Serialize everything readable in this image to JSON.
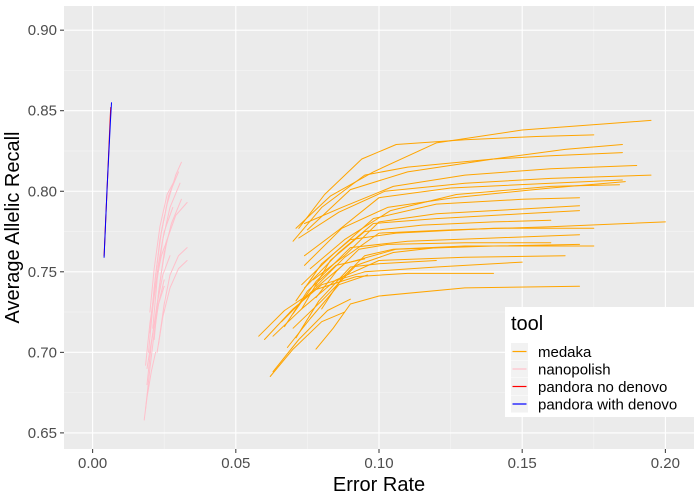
{
  "chart_data": {
    "type": "line",
    "title": "",
    "xlabel": "Error Rate",
    "ylabel": "Average Allelic Recall",
    "xlim": [
      -0.01,
      0.21
    ],
    "ylim": [
      0.64,
      0.915
    ],
    "x_ticks": [
      0.0,
      0.05,
      0.1,
      0.15,
      0.2
    ],
    "x_tick_labels": [
      "0.00",
      "0.05",
      "0.10",
      "0.15",
      "0.20"
    ],
    "y_ticks": [
      0.65,
      0.7,
      0.75,
      0.8,
      0.85,
      0.9
    ],
    "y_tick_labels": [
      "0.65",
      "0.70",
      "0.75",
      "0.80",
      "0.85",
      "0.90"
    ],
    "grid": true,
    "legend": {
      "title": "tool",
      "position": "bottom-right-inside",
      "entries": [
        {
          "label": "medaka",
          "color": "#FFA500"
        },
        {
          "label": "nanopolish",
          "color": "#FFC0CB"
        },
        {
          "label": "pandora no denovo",
          "color": "#FF0000"
        },
        {
          "label": "pandora with denovo",
          "color": "#0000FF"
        }
      ]
    },
    "colors": {
      "medaka": "#FFA500",
      "nanopolish": "#FFC0CB",
      "pandora no denovo": "#FF0000",
      "pandora with denovo": "#0000FF",
      "panel_background": "#EBEBEB",
      "grid_major": "#FFFFFF"
    },
    "series": [
      {
        "tool": "medaka",
        "x": [
          0.07,
          0.08,
          0.095,
          0.11,
          0.14,
          0.16,
          0.185
        ],
        "y": [
          0.769,
          0.79,
          0.81,
          0.815,
          0.82,
          0.822,
          0.824
        ]
      },
      {
        "tool": "medaka",
        "x": [
          0.071,
          0.083,
          0.098,
          0.12,
          0.15,
          0.18,
          0.195
        ],
        "y": [
          0.777,
          0.797,
          0.812,
          0.83,
          0.838,
          0.842,
          0.844
        ]
      },
      {
        "tool": "medaka",
        "x": [
          0.072,
          0.081,
          0.094,
          0.106,
          0.13,
          0.155,
          0.175
        ],
        "y": [
          0.777,
          0.798,
          0.82,
          0.829,
          0.832,
          0.834,
          0.835
        ]
      },
      {
        "tool": "medaka",
        "x": [
          0.075,
          0.09,
          0.11,
          0.14,
          0.165,
          0.185
        ],
        "y": [
          0.776,
          0.801,
          0.812,
          0.82,
          0.826,
          0.829
        ]
      },
      {
        "tool": "medaka",
        "x": [
          0.074,
          0.087,
          0.105,
          0.13,
          0.16,
          0.19
        ],
        "y": [
          0.78,
          0.79,
          0.803,
          0.81,
          0.814,
          0.816
        ]
      },
      {
        "tool": "medaka",
        "x": [
          0.072,
          0.086,
          0.102,
          0.13,
          0.16,
          0.195
        ],
        "y": [
          0.771,
          0.787,
          0.8,
          0.805,
          0.808,
          0.81
        ]
      },
      {
        "tool": "medaka",
        "x": [
          0.074,
          0.086,
          0.1,
          0.125,
          0.16,
          0.185
        ],
        "y": [
          0.76,
          0.776,
          0.796,
          0.802,
          0.805,
          0.807
        ]
      },
      {
        "tool": "medaka",
        "x": [
          0.074,
          0.087,
          0.103,
          0.126,
          0.16,
          0.186
        ],
        "y": [
          0.754,
          0.777,
          0.79,
          0.796,
          0.802,
          0.806
        ]
      },
      {
        "tool": "medaka",
        "x": [
          0.076,
          0.088,
          0.104,
          0.127,
          0.16,
          0.184
        ],
        "y": [
          0.752,
          0.77,
          0.788,
          0.798,
          0.803,
          0.804
        ]
      },
      {
        "tool": "medaka",
        "x": [
          0.073,
          0.084,
          0.098,
          0.12,
          0.15,
          0.17
        ],
        "y": [
          0.742,
          0.761,
          0.783,
          0.792,
          0.795,
          0.796
        ]
      },
      {
        "tool": "medaka",
        "x": [
          0.077,
          0.088,
          0.1,
          0.12,
          0.15,
          0.17
        ],
        "y": [
          0.745,
          0.76,
          0.781,
          0.786,
          0.789,
          0.791
        ]
      },
      {
        "tool": "medaka",
        "x": [
          0.078,
          0.088,
          0.1,
          0.125,
          0.16,
          0.2
        ],
        "y": [
          0.741,
          0.759,
          0.774,
          0.776,
          0.778,
          0.781
        ]
      },
      {
        "tool": "medaka",
        "x": [
          0.074,
          0.086,
          0.098,
          0.12,
          0.15,
          0.17
        ],
        "y": [
          0.74,
          0.762,
          0.78,
          0.783,
          0.786,
          0.788
        ]
      },
      {
        "tool": "medaka",
        "x": [
          0.073,
          0.083,
          0.095,
          0.115,
          0.14,
          0.16
        ],
        "y": [
          0.727,
          0.757,
          0.775,
          0.779,
          0.781,
          0.782
        ]
      },
      {
        "tool": "medaka",
        "x": [
          0.071,
          0.08,
          0.09,
          0.106,
          0.14,
          0.175
        ],
        "y": [
          0.732,
          0.755,
          0.77,
          0.774,
          0.777,
          0.777
        ]
      },
      {
        "tool": "medaka",
        "x": [
          0.07,
          0.078,
          0.09,
          0.11,
          0.14,
          0.17
        ],
        "y": [
          0.724,
          0.744,
          0.765,
          0.769,
          0.771,
          0.773
        ]
      },
      {
        "tool": "medaka",
        "x": [
          0.066,
          0.076,
          0.088,
          0.106,
          0.14,
          0.17
        ],
        "y": [
          0.719,
          0.737,
          0.755,
          0.764,
          0.766,
          0.767
        ]
      },
      {
        "tool": "medaka",
        "x": [
          0.063,
          0.073,
          0.085,
          0.1,
          0.13,
          0.165
        ],
        "y": [
          0.71,
          0.727,
          0.745,
          0.757,
          0.759,
          0.76
        ]
      },
      {
        "tool": "medaka",
        "x": [
          0.06,
          0.07,
          0.08,
          0.095,
          0.12,
          0.15
        ],
        "y": [
          0.708,
          0.727,
          0.742,
          0.75,
          0.753,
          0.756
        ]
      },
      {
        "tool": "medaka",
        "x": [
          0.058,
          0.067,
          0.078,
          0.092,
          0.11,
          0.14
        ],
        "y": [
          0.71,
          0.726,
          0.739,
          0.747,
          0.749,
          0.749
        ]
      },
      {
        "tool": "medaka",
        "x": [
          0.07,
          0.08,
          0.092,
          0.105,
          0.12
        ],
        "y": [
          0.715,
          0.732,
          0.754,
          0.762,
          0.765
        ]
      },
      {
        "tool": "medaka",
        "x": [
          0.071,
          0.079,
          0.09,
          0.1,
          0.12
        ],
        "y": [
          0.709,
          0.732,
          0.753,
          0.755,
          0.757
        ]
      },
      {
        "tool": "medaka",
        "x": [
          0.067,
          0.075,
          0.085,
          0.095
        ],
        "y": [
          0.716,
          0.738,
          0.754,
          0.758
        ]
      },
      {
        "tool": "medaka",
        "x": [
          0.068,
          0.076,
          0.086,
          0.096
        ],
        "y": [
          0.703,
          0.721,
          0.742,
          0.748
        ]
      },
      {
        "tool": "medaka",
        "x": [
          0.063,
          0.072,
          0.082,
          0.09
        ],
        "y": [
          0.688,
          0.708,
          0.726,
          0.733
        ]
      },
      {
        "tool": "medaka",
        "x": [
          0.062,
          0.07,
          0.08,
          0.088
        ],
        "y": [
          0.685,
          0.702,
          0.719,
          0.725
        ]
      },
      {
        "tool": "medaka",
        "x": [
          0.078,
          0.084,
          0.09,
          0.1,
          0.13,
          0.17
        ],
        "y": [
          0.702,
          0.715,
          0.73,
          0.735,
          0.74,
          0.741
        ]
      },
      {
        "tool": "medaka",
        "x": [
          0.08,
          0.087,
          0.095,
          0.105,
          0.13,
          0.175
        ],
        "y": [
          0.727,
          0.746,
          0.76,
          0.764,
          0.766,
          0.766
        ]
      },
      {
        "tool": "medaka",
        "x": [
          0.078,
          0.085,
          0.093,
          0.103,
          0.13,
          0.16
        ],
        "y": [
          0.734,
          0.75,
          0.764,
          0.767,
          0.768,
          0.768
        ]
      },
      {
        "tool": "nanopolish",
        "x": [
          0.0185,
          0.02,
          0.0215,
          0.023,
          0.025
        ],
        "y": [
          0.665,
          0.69,
          0.712,
          0.73,
          0.745
        ]
      },
      {
        "tool": "nanopolish",
        "x": [
          0.019,
          0.0205,
          0.0225,
          0.0245,
          0.027
        ],
        "y": [
          0.68,
          0.705,
          0.73,
          0.748,
          0.76
        ]
      },
      {
        "tool": "nanopolish",
        "x": [
          0.0185,
          0.02,
          0.022,
          0.024,
          0.026
        ],
        "y": [
          0.692,
          0.718,
          0.742,
          0.76,
          0.77
        ]
      },
      {
        "tool": "nanopolish",
        "x": [
          0.0195,
          0.021,
          0.023,
          0.025,
          0.028
        ],
        "y": [
          0.7,
          0.728,
          0.755,
          0.775,
          0.79
        ]
      },
      {
        "tool": "nanopolish",
        "x": [
          0.02,
          0.0215,
          0.0235,
          0.026,
          0.029,
          0.031
        ],
        "y": [
          0.712,
          0.74,
          0.77,
          0.792,
          0.81,
          0.818
        ]
      },
      {
        "tool": "nanopolish",
        "x": [
          0.0205,
          0.022,
          0.024,
          0.0265,
          0.03
        ],
        "y": [
          0.72,
          0.748,
          0.775,
          0.797,
          0.812
        ]
      },
      {
        "tool": "nanopolish",
        "x": [
          0.021,
          0.0225,
          0.0245,
          0.027,
          0.0305
        ],
        "y": [
          0.715,
          0.745,
          0.77,
          0.79,
          0.805
        ]
      },
      {
        "tool": "nanopolish",
        "x": [
          0.0215,
          0.023,
          0.025,
          0.0275,
          0.031
        ],
        "y": [
          0.708,
          0.737,
          0.762,
          0.78,
          0.795
        ]
      },
      {
        "tool": "nanopolish",
        "x": [
          0.022,
          0.024,
          0.026,
          0.029,
          0.033
        ],
        "y": [
          0.722,
          0.75,
          0.77,
          0.785,
          0.793
        ]
      },
      {
        "tool": "nanopolish",
        "x": [
          0.023,
          0.025,
          0.027,
          0.03,
          0.033
        ],
        "y": [
          0.705,
          0.73,
          0.748,
          0.76,
          0.765
        ]
      },
      {
        "tool": "nanopolish",
        "x": [
          0.018,
          0.019,
          0.0205,
          0.022
        ],
        "y": [
          0.658,
          0.672,
          0.688,
          0.7
        ]
      },
      {
        "tool": "nanopolish",
        "x": [
          0.0225,
          0.0245,
          0.027,
          0.03,
          0.033
        ],
        "y": [
          0.7,
          0.722,
          0.74,
          0.752,
          0.757
        ]
      },
      {
        "tool": "nanopolish",
        "x": [
          0.019,
          0.021,
          0.023,
          0.025
        ],
        "y": [
          0.69,
          0.712,
          0.73,
          0.741
        ]
      },
      {
        "tool": "nanopolish",
        "x": [
          0.02,
          0.0215,
          0.0235,
          0.026,
          0.029
        ],
        "y": [
          0.725,
          0.752,
          0.778,
          0.798,
          0.808
        ]
      },
      {
        "tool": "pandora no denovo",
        "x": [
          0.004,
          0.0045,
          0.005,
          0.0055,
          0.006,
          0.0063
        ],
        "y": [
          0.76,
          0.78,
          0.8,
          0.82,
          0.84,
          0.852
        ]
      },
      {
        "tool": "pandora with denovo",
        "x": [
          0.004,
          0.0045,
          0.005,
          0.0056,
          0.0062,
          0.0066
        ],
        "y": [
          0.759,
          0.779,
          0.801,
          0.822,
          0.843,
          0.855
        ]
      }
    ]
  }
}
